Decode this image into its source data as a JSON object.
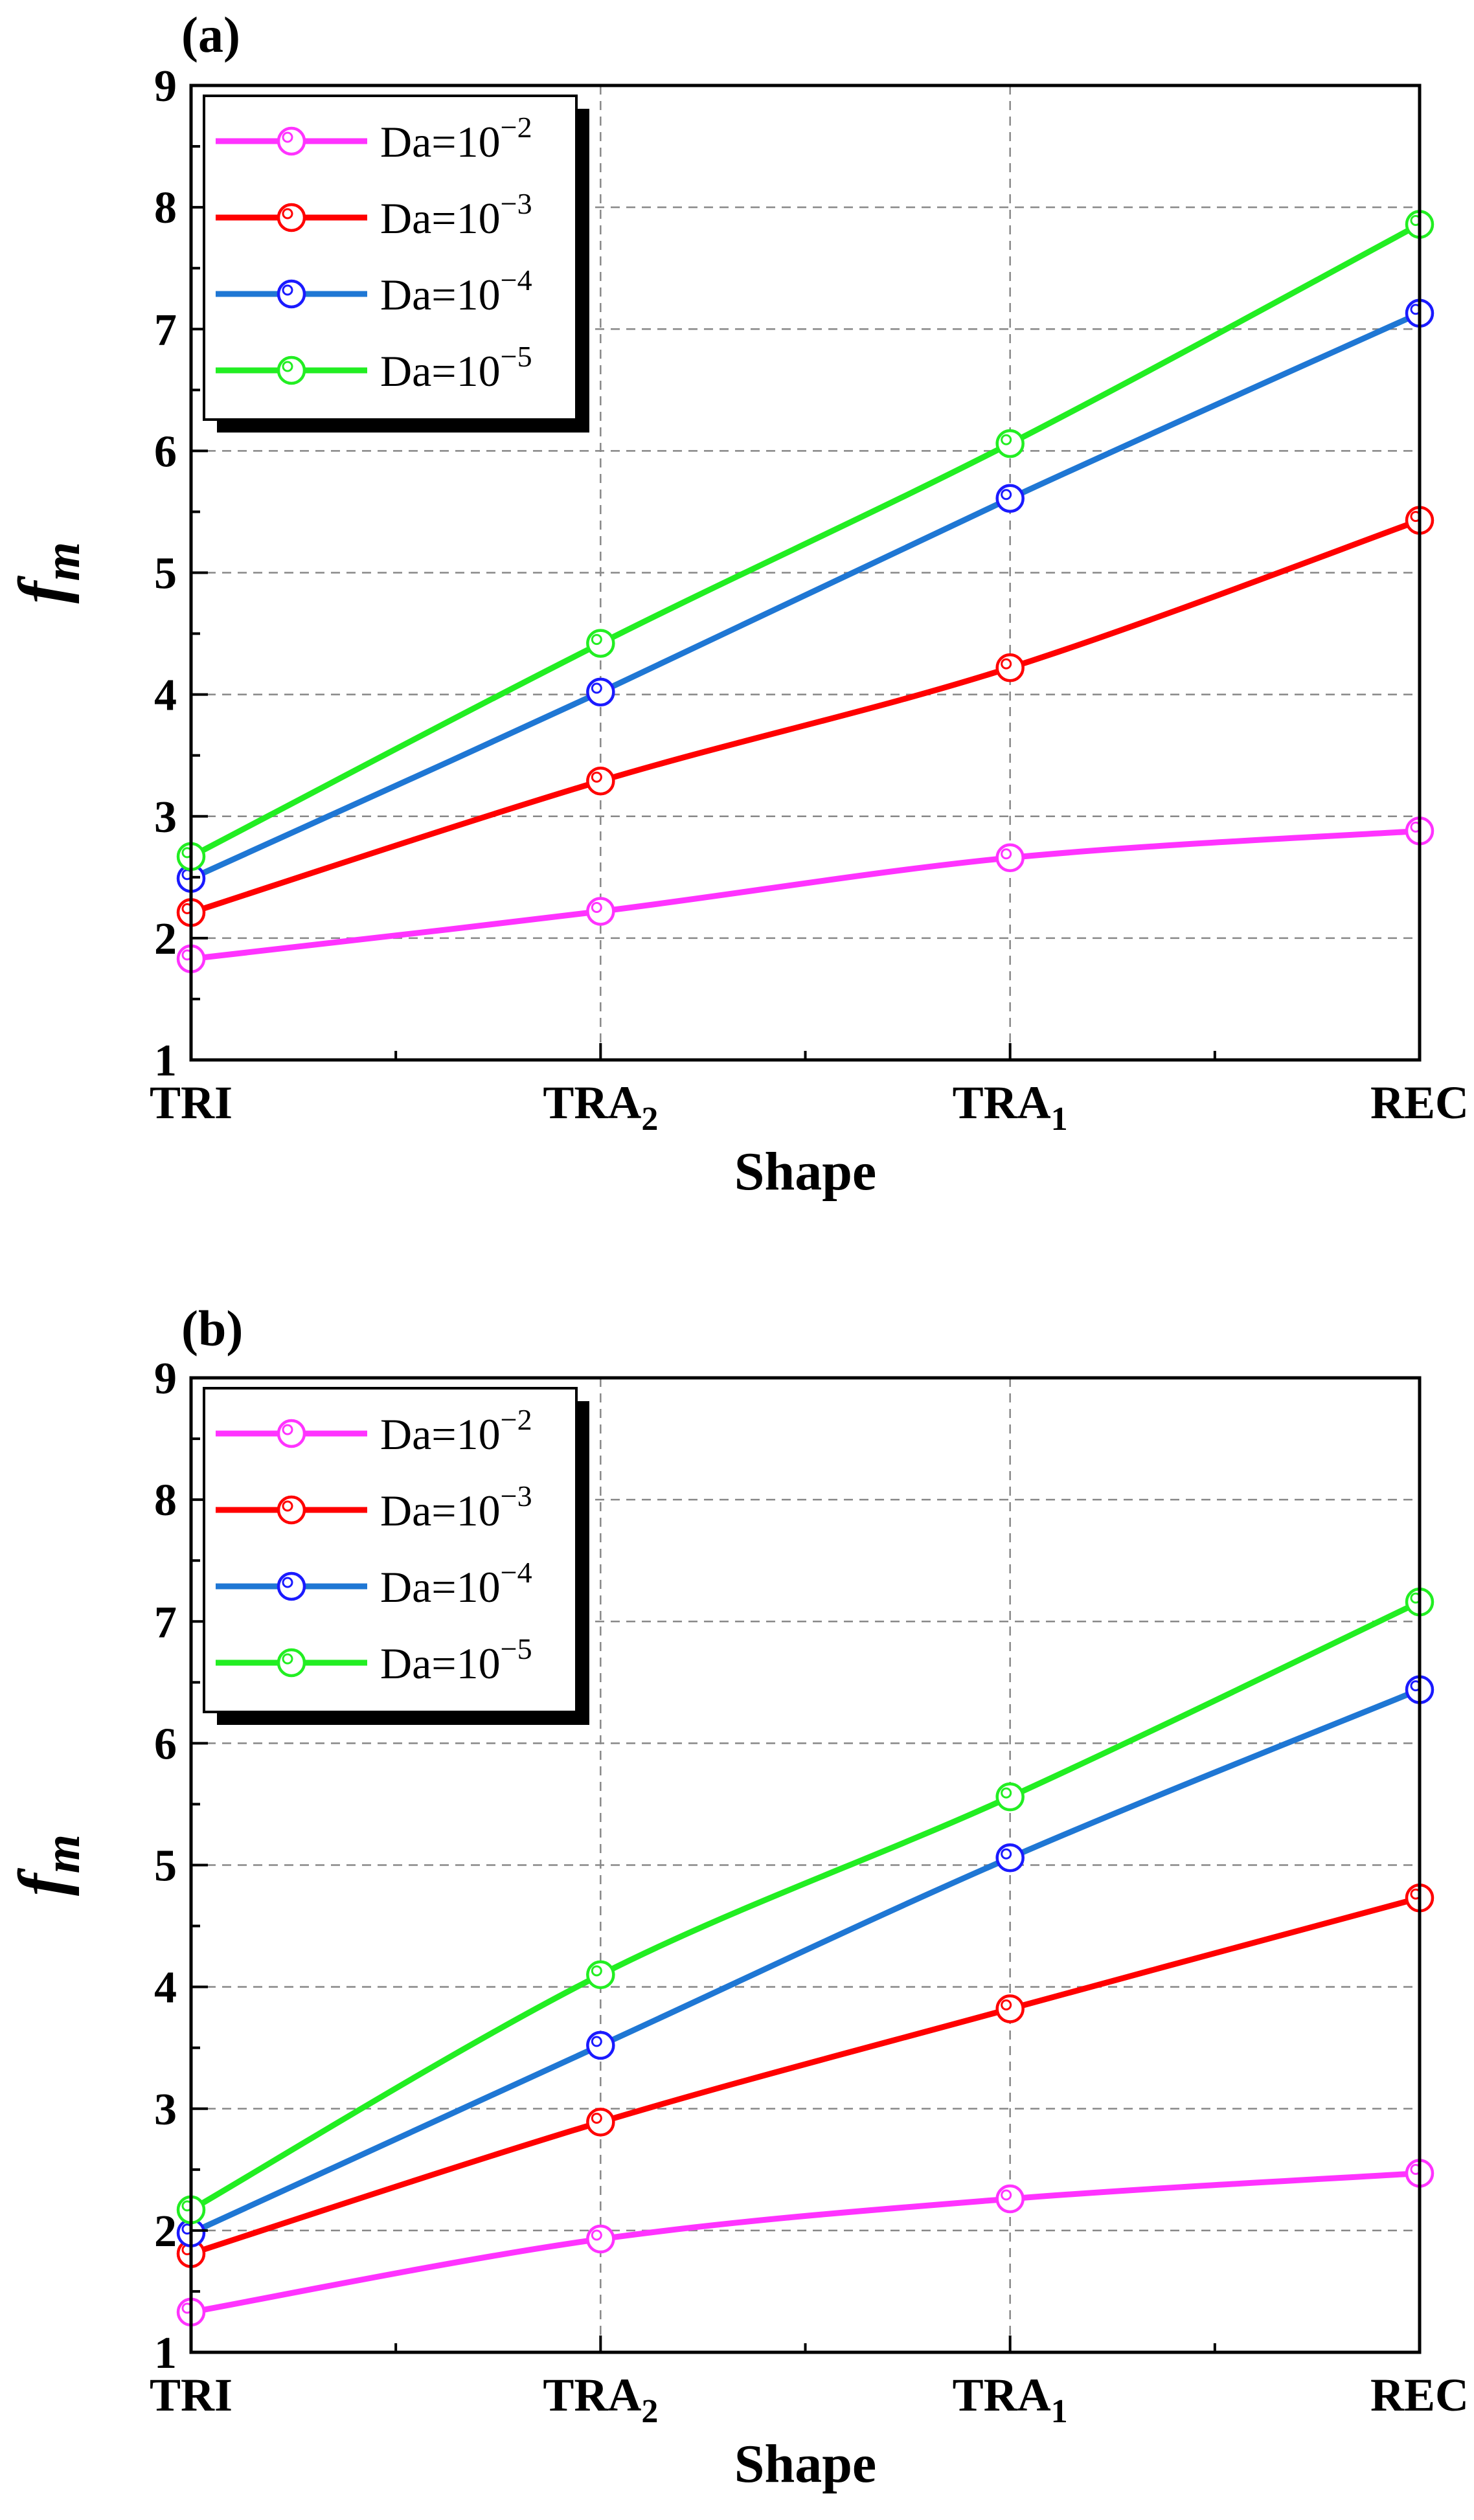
{
  "colors": {
    "series": [
      "#ff33ff",
      "#ff0000",
      "#1f77d4",
      "#22ee22"
    ],
    "markers": [
      "#ff33ff",
      "#ff0000",
      "#1a1aff",
      "#22ee22"
    ],
    "grid": "#888888",
    "axis": "#000000"
  },
  "chart_data": [
    {
      "type": "line",
      "panel_label": "(a)",
      "categories": [
        "TRI",
        "TRA",
        "TRA",
        "REC"
      ],
      "category_subscripts": [
        "",
        "2",
        "1",
        ""
      ],
      "xlabel": "Shape",
      "ylabel_main": "f",
      "ylabel_sub": "m",
      "ylim": [
        1,
        9
      ],
      "yticks": [
        1,
        2,
        3,
        4,
        5,
        6,
        7,
        8,
        9
      ],
      "grid": true,
      "legend_position": "top-left",
      "series": [
        {
          "name": "Da=10",
          "exponent": "−2",
          "values": [
            1.83,
            2.22,
            2.66,
            2.88
          ]
        },
        {
          "name": "Da=10",
          "exponent": "−3",
          "values": [
            2.21,
            3.29,
            4.22,
            5.43
          ]
        },
        {
          "name": "Da=10",
          "exponent": "−4",
          "values": [
            2.49,
            4.02,
            5.61,
            7.13
          ]
        },
        {
          "name": "Da=10",
          "exponent": "−5",
          "values": [
            2.67,
            4.42,
            6.06,
            7.86
          ]
        }
      ]
    },
    {
      "type": "line",
      "panel_label": "(b)",
      "categories": [
        "TRI",
        "TRA",
        "TRA",
        "REC"
      ],
      "category_subscripts": [
        "",
        "2",
        "1",
        ""
      ],
      "xlabel": "Shape",
      "ylabel_main": "f",
      "ylabel_sub": "m",
      "ylim": [
        1,
        9
      ],
      "yticks": [
        1,
        2,
        3,
        4,
        5,
        6,
        7,
        8,
        9
      ],
      "grid": true,
      "legend_position": "top-left",
      "series": [
        {
          "name": "Da=10",
          "exponent": "−2",
          "values": [
            1.33,
            1.93,
            2.26,
            2.47
          ]
        },
        {
          "name": "Da=10",
          "exponent": "−3",
          "values": [
            1.81,
            2.89,
            3.82,
            4.73
          ]
        },
        {
          "name": "Da=10",
          "exponent": "−4",
          "values": [
            1.98,
            3.52,
            5.06,
            6.44
          ]
        },
        {
          "name": "Da=10",
          "exponent": "−5",
          "values": [
            2.17,
            4.1,
            5.56,
            7.16
          ]
        }
      ]
    }
  ]
}
